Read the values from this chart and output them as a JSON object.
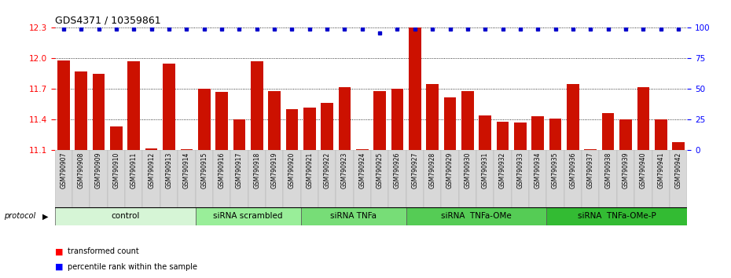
{
  "title": "GDS4371 / 10359861",
  "samples": [
    "GSM790907",
    "GSM790908",
    "GSM790909",
    "GSM790910",
    "GSM790911",
    "GSM790912",
    "GSM790913",
    "GSM790914",
    "GSM790915",
    "GSM790916",
    "GSM790917",
    "GSM790918",
    "GSM790919",
    "GSM790920",
    "GSM790921",
    "GSM790922",
    "GSM790923",
    "GSM790924",
    "GSM790925",
    "GSM790926",
    "GSM790927",
    "GSM790928",
    "GSM790929",
    "GSM790930",
    "GSM790931",
    "GSM790932",
    "GSM790933",
    "GSM790934",
    "GSM790935",
    "GSM790936",
    "GSM790937",
    "GSM790938",
    "GSM790939",
    "GSM790940",
    "GSM790941",
    "GSM790942"
  ],
  "bar_values": [
    11.98,
    11.87,
    11.85,
    11.33,
    11.97,
    11.12,
    11.95,
    11.11,
    11.7,
    11.67,
    11.4,
    11.97,
    11.68,
    11.5,
    11.52,
    11.56,
    11.72,
    11.11,
    11.68,
    11.7,
    12.3,
    11.75,
    11.62,
    11.68,
    11.44,
    11.38,
    11.37,
    11.43,
    11.41,
    11.75,
    11.11,
    11.46,
    11.4,
    11.72,
    11.4,
    11.18
  ],
  "percentile_values": [
    99,
    99,
    99,
    99,
    99,
    99,
    99,
    99,
    99,
    99,
    99,
    99,
    99,
    99,
    99,
    99,
    99,
    99,
    96,
    99,
    99,
    99,
    99,
    99,
    99,
    99,
    99,
    99,
    99,
    99,
    99,
    99,
    99,
    99,
    99,
    99
  ],
  "groups": [
    {
      "label": "control",
      "start": 0,
      "end": 8,
      "color": "#d6f5d6"
    },
    {
      "label": "siRNA scrambled",
      "start": 8,
      "end": 14,
      "color": "#99ee99"
    },
    {
      "label": "siRNA TNFa",
      "start": 14,
      "end": 20,
      "color": "#77dd77"
    },
    {
      "label": "siRNA  TNFa-OMe",
      "start": 20,
      "end": 28,
      "color": "#55cc55"
    },
    {
      "label": "siRNA  TNFa-OMe-P",
      "start": 28,
      "end": 36,
      "color": "#33bb33"
    }
  ],
  "ylim_left": [
    11.1,
    12.3
  ],
  "ylim_right": [
    0,
    100
  ],
  "yticks_left": [
    11.1,
    11.4,
    11.7,
    12.0,
    12.3
  ],
  "yticks_right": [
    0,
    25,
    50,
    75,
    100
  ],
  "bar_color": "#cc1100",
  "dot_color": "#0000cc",
  "plot_bg": "#ffffff",
  "tick_label_bg": "#dddddd"
}
